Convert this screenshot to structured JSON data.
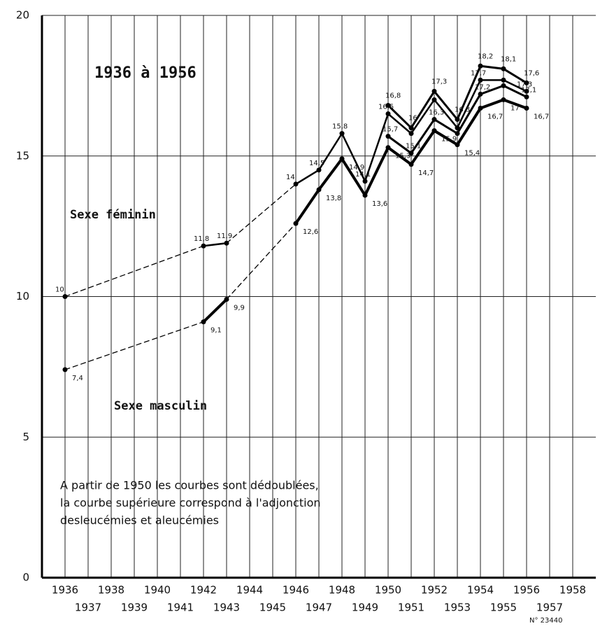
{
  "chart_data": {
    "type": "line",
    "title": "1936 à 1956",
    "annotations": [
      "Sexe féminin",
      "Sexe masculin",
      "A partir de 1950 les courbes sont dédoublées,",
      "la courbe supérieure correspond à l'adjonction",
      "desleucémies et aleucémies",
      "N° 23440"
    ],
    "x": [
      1936,
      1942,
      1943,
      1946,
      1947,
      1948,
      1949,
      1950,
      1951,
      1952,
      1953,
      1954,
      1955,
      1956
    ],
    "series": [
      {
        "color": "#000000",
        "values": [
          10,
          11.8,
          11.9,
          14,
          14.5,
          15.8,
          14.1,
          16.5,
          15.8,
          17.0,
          16.0,
          17.7,
          17.7,
          17.3
        ],
        "value_labels": [
          "10",
          "11,8",
          "11,9",
          "14",
          "14,5",
          "15,8",
          "14,1",
          "16,5",
          null,
          null,
          null,
          "17,7",
          null,
          "17,3"
        ]
      },
      {
        "color": "#000000",
        "values": [
          null,
          null,
          null,
          null,
          null,
          null,
          null,
          16.8,
          16.0,
          17.3,
          16.3,
          18.2,
          18.1,
          17.6
        ],
        "value_labels": [
          null,
          null,
          null,
          null,
          null,
          null,
          null,
          "16,8",
          "16",
          "17,3",
          "16,3",
          "18,2",
          "18,1",
          "17,6"
        ]
      },
      {
        "color": "#000000",
        "values": [
          7.4,
          9.1,
          9.9,
          12.6,
          13.8,
          14.9,
          13.6,
          15.3,
          14.7,
          15.9,
          15.4,
          16.7,
          17.0,
          16.7
        ],
        "value_labels": [
          "7,4",
          "9,1",
          "9,9",
          "12,6",
          "13,8",
          "14,9",
          "13,6",
          "15,3",
          "14,7",
          "15,9",
          "15,4",
          "16,7",
          "17",
          "16,7"
        ]
      },
      {
        "color": "#000000",
        "values": [
          null,
          null,
          null,
          null,
          null,
          null,
          null,
          15.7,
          15.1,
          16.3,
          15.8,
          17.2,
          17.5,
          17.1
        ],
        "value_labels": [
          null,
          null,
          null,
          null,
          null,
          null,
          null,
          "15,7",
          "15,1",
          "16,3",
          null,
          "17,2",
          null,
          "17,1"
        ]
      }
    ],
    "xlim": [
      1935,
      1959
    ],
    "xticks": [
      1936,
      1937,
      1938,
      1939,
      1940,
      1941,
      1942,
      1943,
      1944,
      1945,
      1946,
      1947,
      1948,
      1949,
      1950,
      1951,
      1952,
      1953,
      1954,
      1955,
      1956,
      1957,
      1958
    ],
    "ylim": [
      0,
      20
    ],
    "yticks": [
      0,
      5,
      10,
      15,
      20
    ],
    "grid": true
  }
}
